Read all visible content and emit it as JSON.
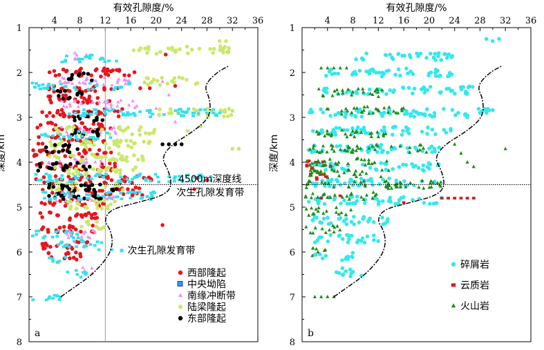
{
  "chart_data": [
    {
      "type": "scatter",
      "panel_label": "a",
      "x_axis_label": "有效孔隙度/%",
      "y_axis_label": "深度/km",
      "xlim": [
        0,
        36
      ],
      "ylim": [
        1,
        8
      ],
      "x_ticks": [
        "4",
        "8",
        "12",
        "16",
        "20",
        "24",
        "28",
        "32",
        "36"
      ],
      "y_ticks": [
        "1",
        "2",
        "3",
        "4",
        "5",
        "6",
        "7",
        "8"
      ],
      "y_inverted": true,
      "x_axis_position": "top",
      "vertical_reference_x": 12,
      "horizontal_reference_depth": 4.5,
      "annotations": [
        {
          "text": "4500m深度线",
          "x": 23.5,
          "y": 4.37
        },
        {
          "text": "次生孔隙发育带",
          "x": 23.2,
          "y": 4.67
        },
        {
          "text": "次生孔隙发育带",
          "x": 15.5,
          "y": 5.96
        }
      ],
      "envelope_curve": [
        [
          5,
          7
        ],
        [
          7,
          6.8
        ],
        [
          10,
          6.5
        ],
        [
          12.5,
          6.1
        ],
        [
          13.2,
          5.8
        ],
        [
          12.8,
          5.5
        ],
        [
          11.8,
          5.3
        ],
        [
          12.8,
          5.05
        ],
        [
          17,
          4.9
        ],
        [
          21,
          4.75
        ],
        [
          22.5,
          4.55
        ],
        [
          22,
          4.2
        ],
        [
          20.8,
          3.9
        ],
        [
          22.5,
          3.6
        ],
        [
          25.5,
          3.35
        ],
        [
          28.5,
          3.0
        ],
        [
          28.5,
          2.6
        ],
        [
          27.5,
          2.3
        ],
        [
          29.5,
          2.0
        ],
        [
          31.5,
          1.85
        ]
      ],
      "series": [
        {
          "name": "西部隆起",
          "color": "#e8141c",
          "marker": "circle",
          "bands": [
            [
              2.0,
              1.5,
              17
            ],
            [
              2.35,
              3,
              14
            ],
            [
              2.6,
              2,
              13
            ],
            [
              2.9,
              1.5,
              15
            ],
            [
              3.2,
              1,
              14
            ],
            [
              3.5,
              1,
              12
            ],
            [
              3.8,
              0.5,
              13
            ],
            [
              4.1,
              1,
              14
            ],
            [
              4.4,
              1,
              20
            ],
            [
              4.65,
              2,
              18
            ],
            [
              4.9,
              1,
              12
            ],
            [
              5.2,
              1,
              11
            ],
            [
              5.5,
              2,
              11
            ],
            [
              5.85,
              2,
              10
            ],
            [
              6.1,
              3,
              9
            ]
          ],
          "points": [
            [
              17.5,
              2.35
            ],
            [
              19,
              2.35
            ],
            [
              21.5,
              1.6
            ],
            [
              23,
              2.3
            ],
            [
              26.5,
              4.35
            ],
            [
              28,
              4.4
            ],
            [
              26,
              4.6
            ],
            [
              21,
              5.4
            ]
          ]
        },
        {
          "name": "中央坳陷",
          "color": "#1a73e8",
          "marker": "square",
          "bands": [],
          "points": []
        },
        {
          "name": "南缘冲断带",
          "color": "#f08ef0",
          "marker": "triangle",
          "bands": [
            [
              1.65,
              7,
              10
            ],
            [
              2.2,
              3,
              16
            ],
            [
              2.7,
              5,
              17
            ],
            [
              3.3,
              4,
              14
            ],
            [
              4.0,
              3,
              12
            ],
            [
              4.8,
              4,
              14
            ],
            [
              5.6,
              6,
              12
            ],
            [
              6.4,
              8,
              10
            ]
          ],
          "points": [
            [
              21,
              2.2
            ],
            [
              22,
              2.5
            ],
            [
              20,
              2.8
            ],
            [
              23,
              3.1
            ]
          ]
        },
        {
          "name": "陆梁隆起",
          "color": "#cbe86b",
          "marker": "circle",
          "bands": [
            [
              1.5,
              16,
              32
            ],
            [
              2.2,
              18,
              27
            ],
            [
              2.9,
              20,
              33
            ],
            [
              3.3,
              4,
              20
            ],
            [
              3.6,
              2,
              19
            ],
            [
              3.9,
              3,
              18
            ],
            [
              4.2,
              4,
              17
            ],
            [
              4.55,
              3,
              15
            ],
            [
              4.95,
              5,
              14
            ],
            [
              5.4,
              8,
              12
            ]
          ],
          "points": [
            [
              30,
              1.3
            ],
            [
              31,
              1.3
            ],
            [
              32,
              3.7
            ],
            [
              33,
              3.7
            ],
            [
              27,
              3.2
            ],
            [
              25,
              3.3
            ]
          ]
        },
        {
          "name": "东部隆起",
          "color": "#000000",
          "marker": "circle",
          "bands": [
            [
              2.1,
              6,
              10
            ],
            [
              2.5,
              4,
              9
            ],
            [
              3.0,
              7,
              12
            ],
            [
              3.35,
              6,
              11
            ],
            [
              3.7,
              2,
              8
            ],
            [
              4.1,
              1,
              10
            ],
            [
              4.55,
              3,
              14
            ],
            [
              4.75,
              3,
              12
            ]
          ],
          "points": [
            [
              21,
              3.6
            ],
            [
              22,
              3.6
            ],
            [
              23,
              3.6
            ],
            [
              24,
              3.6
            ]
          ]
        },
        {
          "name": "",
          "color": "#33e0ee",
          "marker": "square",
          "bands": [
            [
              1.7,
              5,
              14
            ],
            [
              2.3,
              0.5,
              16
            ],
            [
              2.9,
              6,
              30
            ],
            [
              3.4,
              2,
              13
            ],
            [
              4.35,
              1,
              30
            ],
            [
              4.75,
              1,
              20
            ],
            [
              5.6,
              0.5,
              8
            ],
            [
              5.8,
              4,
              13
            ],
            [
              6.15,
              3,
              6
            ],
            [
              6.5,
              5,
              9
            ],
            [
              7.0,
              0.5,
              5
            ]
          ],
          "points": [
            [
              26,
              2.9
            ],
            [
              28,
              2.9
            ],
            [
              29,
              2.9
            ],
            [
              30,
              2.9
            ],
            [
              13,
              5.95
            ],
            [
              11,
              5.95
            ]
          ]
        }
      ],
      "legend": [
        "西部隆起",
        "中央坳陷",
        "南缘冲断带",
        "陆梁隆起",
        "东部隆起"
      ],
      "legend_placement": "bottom-right"
    },
    {
      "type": "scatter",
      "panel_label": "b",
      "x_axis_label": "有效孔隙度/%",
      "y_axis_label": "深度/km",
      "xlim": [
        0,
        36
      ],
      "ylim": [
        1,
        8
      ],
      "x_ticks": [
        "4",
        "8",
        "12",
        "16",
        "20",
        "24",
        "28",
        "32",
        "36"
      ],
      "y_ticks": [
        "1",
        "2",
        "3",
        "4",
        "5",
        "6",
        "7",
        "8"
      ],
      "y_inverted": true,
      "x_axis_position": "top",
      "horizontal_reference_depth": 4.5,
      "envelope_curve": [
        [
          5,
          7
        ],
        [
          7,
          6.8
        ],
        [
          10,
          6.5
        ],
        [
          12.5,
          6.1
        ],
        [
          13.2,
          5.8
        ],
        [
          12.8,
          5.5
        ],
        [
          11.8,
          5.3
        ],
        [
          12.8,
          5.05
        ],
        [
          17,
          4.9
        ],
        [
          21,
          4.75
        ],
        [
          22.5,
          4.55
        ],
        [
          22,
          4.2
        ],
        [
          20.8,
          3.9
        ],
        [
          22.5,
          3.6
        ],
        [
          25.5,
          3.35
        ],
        [
          28.5,
          3.0
        ],
        [
          28.5,
          2.6
        ],
        [
          27.5,
          2.3
        ],
        [
          29.5,
          2.0
        ],
        [
          31.5,
          1.85
        ]
      ],
      "series": [
        {
          "name": "碎屑岩",
          "color": "#33e8ee",
          "marker": "circle",
          "bands": [
            [
              1.65,
              8,
              24
            ],
            [
              2.0,
              3,
              24
            ],
            [
              2.4,
              3,
              27
            ],
            [
              2.9,
              1,
              30
            ],
            [
              3.3,
              1,
              24
            ],
            [
              3.7,
              1,
              22
            ],
            [
              4.1,
              1,
              22
            ],
            [
              4.45,
              1,
              22
            ],
            [
              4.85,
              1,
              22
            ],
            [
              5.3,
              0.5,
              14
            ],
            [
              5.7,
              1,
              12
            ],
            [
              6.1,
              2,
              8
            ],
            [
              6.45,
              5,
              10
            ]
          ],
          "points": [
            [
              29,
              1.25
            ],
            [
              31,
              1.25
            ],
            [
              30,
              1.3
            ],
            [
              26,
              3.0
            ],
            [
              28,
              2.9
            ],
            [
              29,
              2.9
            ]
          ]
        },
        {
          "name": "云质岩",
          "color": "#e8141c",
          "marker": "square",
          "bands": [
            [
              4.05,
              0.5,
              5
            ],
            [
              4.3,
              0.5,
              4
            ]
          ],
          "points": [
            [
              22,
              4.8
            ],
            [
              23,
              4.8
            ],
            [
              24,
              4.8
            ],
            [
              25,
              4.8
            ],
            [
              26,
              4.8
            ],
            [
              27,
              4.8
            ],
            [
              16,
              4.9
            ],
            [
              6,
              4.75
            ],
            [
              3,
              4.8
            ]
          ]
        },
        {
          "name": "火山岩",
          "color": "#1e8c1e",
          "marker": "triangle",
          "bands": [
            [
              2.45,
              2,
              13
            ],
            [
              2.85,
              3,
              16
            ],
            [
              3.35,
              2,
              14
            ],
            [
              3.7,
              1,
              20
            ],
            [
              4.0,
              0.5,
              14
            ],
            [
              4.25,
              0.5,
              14
            ],
            [
              4.5,
              0.5,
              22
            ],
            [
              4.75,
              0.5,
              12
            ],
            [
              5.1,
              0.5,
              8
            ],
            [
              5.5,
              0.5,
              6
            ],
            [
              6.0,
              1,
              4
            ]
          ],
          "points": [
            [
              3,
              1.9
            ],
            [
              4,
              1.9
            ],
            [
              5,
              1.9
            ],
            [
              6,
              1.9
            ],
            [
              7,
              1.9
            ],
            [
              24,
              3.6
            ],
            [
              25,
              3.8
            ],
            [
              26,
              4.0
            ],
            [
              32,
              3.7
            ],
            [
              27,
              4.1
            ],
            [
              2,
              7.0
            ],
            [
              3,
              7.0
            ],
            [
              4,
              7.0
            ],
            [
              5,
              7.0
            ]
          ]
        }
      ],
      "legend": [
        "碎屑岩",
        "云质岩",
        "火山岩"
      ],
      "legend_placement": "bottom-right"
    }
  ]
}
